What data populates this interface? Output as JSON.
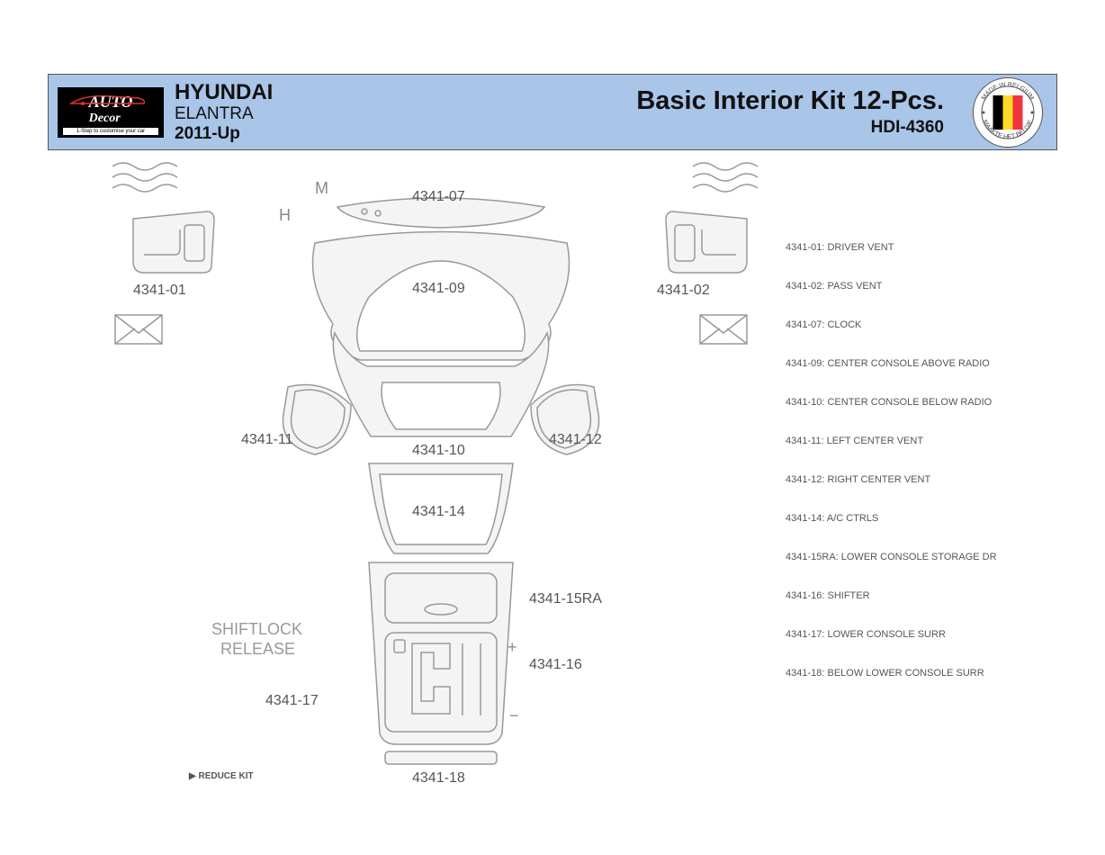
{
  "header": {
    "logo": {
      "brand": "AUTO",
      "sub": "Decor",
      "strap": "1-Step to customise your car"
    },
    "vehicle": {
      "make": "HYUNDAI",
      "model": "ELANTRA",
      "year": "2011-Up"
    },
    "kit": {
      "title": "Basic Interior Kit  12-Pcs.",
      "code": "HDI-4360"
    },
    "seal": {
      "top": "MADE IN BELGIUM",
      "bottom": "MAAKTE HET BELGIE",
      "flag_colors": [
        "#000000",
        "#fdda24",
        "#ef3340"
      ]
    }
  },
  "colors": {
    "header_bg": "#a9c5e8",
    "stroke": "#999999",
    "text": "#555555",
    "label_text": "#555555",
    "shape_fill": "#f4f4f4",
    "line": "#888888"
  },
  "labels": {
    "p01": "4341-01",
    "p02": "4341-02",
    "p07": "4341-07",
    "p09": "4341-09",
    "p10": "4341-10",
    "p11": "4341-11",
    "p12": "4341-12",
    "p14": "4341-14",
    "p15": "4341-15RA",
    "p16": "4341-16",
    "p17": "4341-17",
    "p18": "4341-18",
    "H": "H",
    "M": "M",
    "shiftlock1": "SHIFTLOCK",
    "shiftlock2": "RELEASE",
    "reduce": "▶ REDUCE KIT",
    "plus": "+",
    "minus": "−"
  },
  "legend": [
    {
      "id": "4341-01",
      "name": "DRIVER VENT"
    },
    {
      "id": "4341-02",
      "name": "PASS VENT"
    },
    {
      "id": "4341-07",
      "name": "CLOCK"
    },
    {
      "id": "4341-09",
      "name": "CENTER CONSOLE ABOVE RADIO"
    },
    {
      "id": "4341-10",
      "name": "CENTER CONSOLE BELOW RADIO"
    },
    {
      "id": "4341-11",
      "name": "LEFT CENTER VENT"
    },
    {
      "id": "4341-12",
      "name": "RIGHT CENTER VENT"
    },
    {
      "id": "4341-14",
      "name": "A/C CTRLS"
    },
    {
      "id": "4341-15RA",
      "name": "LOWER CONSOLE STORAGE DR"
    },
    {
      "id": "4341-16",
      "name": "SHIFTER"
    },
    {
      "id": "4341-17",
      "name": "LOWER CONSOLE SURR"
    },
    {
      "id": "4341-18",
      "name": "BELOW LOWER CONSOLE SURR"
    }
  ]
}
